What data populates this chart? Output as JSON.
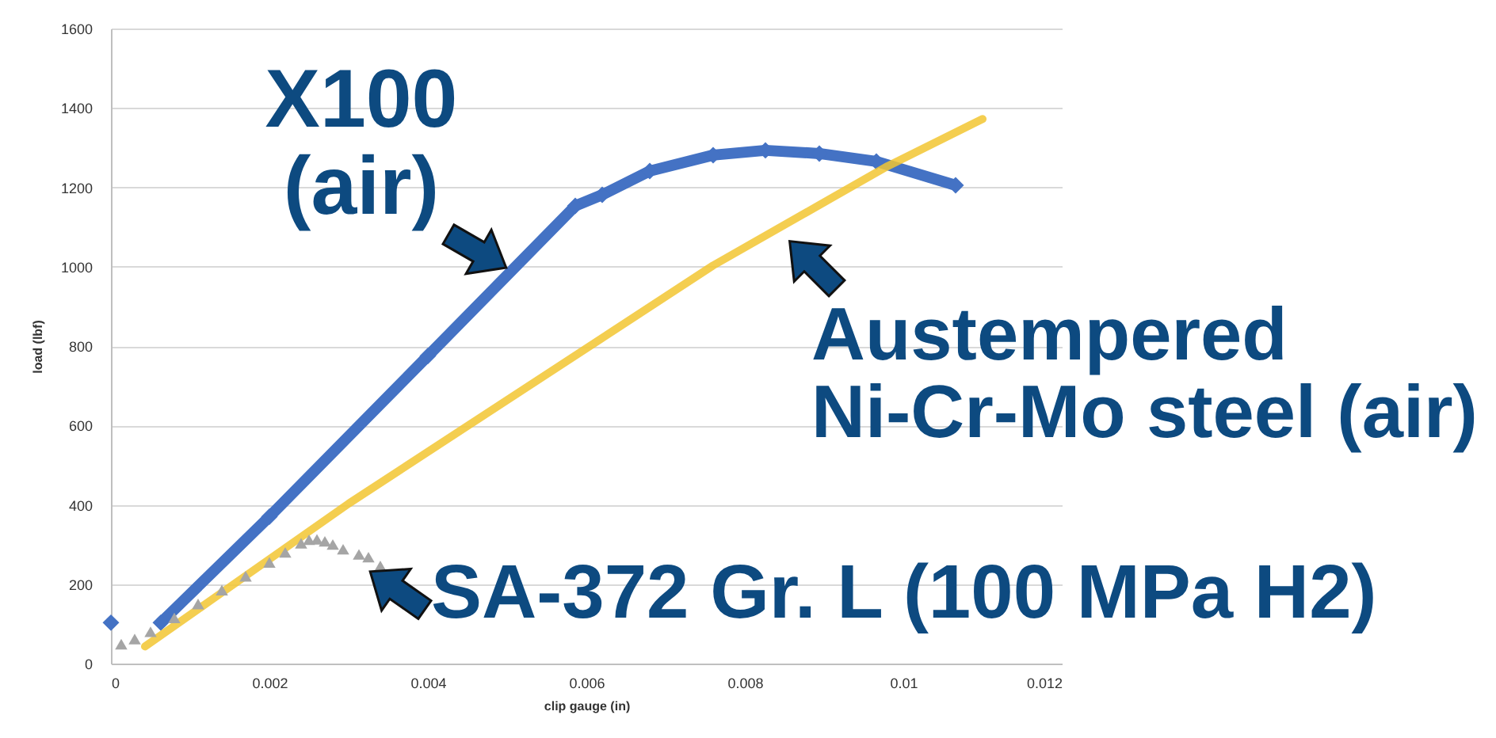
{
  "chart_data": {
    "type": "line",
    "xlabel": "clip gauge (in)",
    "ylabel": "load (lbf)",
    "xlim": [
      0,
      0.012
    ],
    "xticks": [
      0,
      0.002,
      0.004,
      0.006,
      0.008,
      0.01,
      0.012
    ],
    "ylim": [
      0,
      1600
    ],
    "yticks": [
      0,
      200,
      400,
      600,
      800,
      1000,
      1200,
      1400,
      1600
    ],
    "grid": "y",
    "series": [
      {
        "name": "X100 (air)",
        "type": "line",
        "marker": "diamond",
        "color": "#4472c4",
        "x": [
          0,
          0.0003,
          0.00063,
          0.002,
          0.004,
          0.00586,
          0.0062,
          0.0068,
          0.0076,
          0.00826,
          0.00894,
          0.00966,
          0.01066
        ],
        "values": [
          103,
          null,
          103,
          370,
          775,
          1153,
          1181,
          1241,
          1281,
          1293,
          1285,
          1265,
          1205
        ]
      },
      {
        "name": "Austempered Ni-Cr-Mo steel (air)",
        "type": "line",
        "marker": "none",
        "color": "#f2c531",
        "x": [
          0.00043,
          0.001,
          0.003,
          0.0076,
          0.0098,
          0.011
        ],
        "values": [
          43,
          123,
          403,
          1003,
          1253,
          1372
        ]
      },
      {
        "name": "SA-372 Gr. L (100 MPa H2)",
        "type": "scatter",
        "marker": "triangle",
        "color": "#a5a5a5",
        "x": [
          0.00013,
          0.0003,
          0.0005,
          0.0008,
          0.0011,
          0.0014,
          0.0017,
          0.002,
          0.0022,
          0.0024,
          0.0025,
          0.0026,
          0.0027,
          0.0028,
          0.00293,
          0.00313,
          0.00325,
          0.0034
        ],
        "values": [
          49,
          62,
          80,
          115,
          150,
          185,
          220,
          255,
          280,
          303,
          312,
          313,
          308,
          300,
          288,
          275,
          268,
          246
        ]
      }
    ]
  }
}
